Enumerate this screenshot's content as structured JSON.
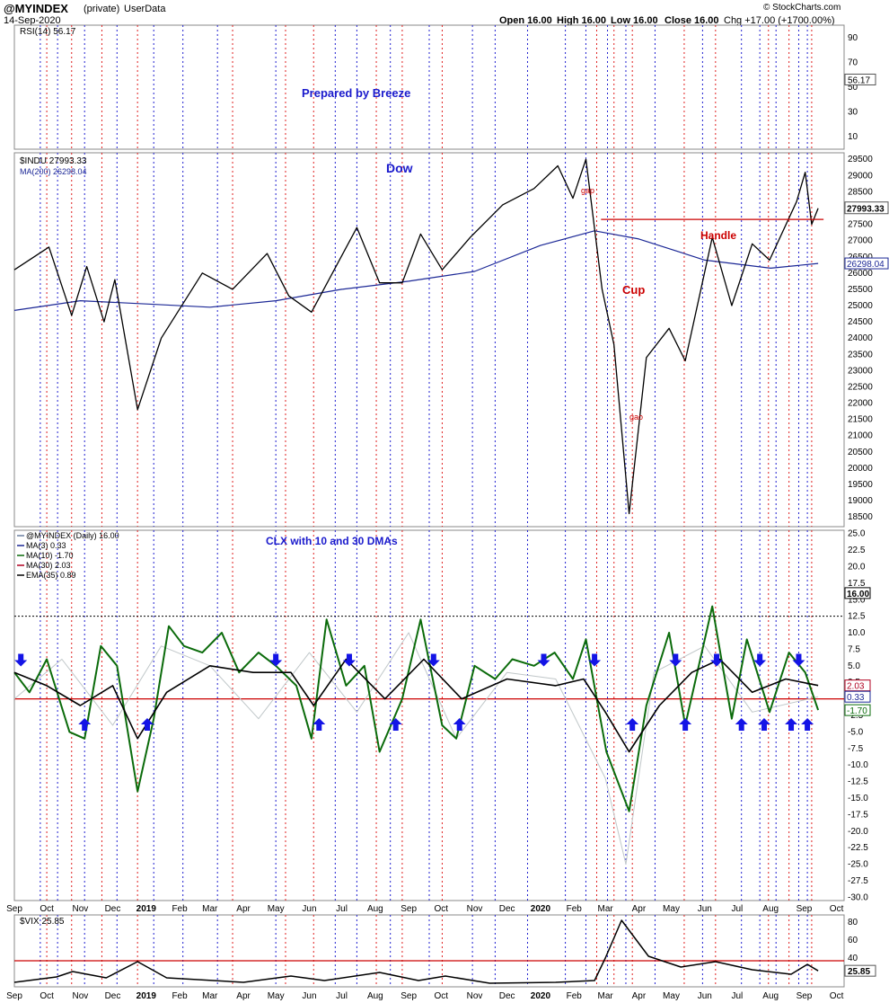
{
  "header": {
    "symbol": "@MYINDEX",
    "tag": "(private)",
    "source": "UserData",
    "date": "14-Sep-2020",
    "open": "Open 16.00",
    "high": "High 16.00",
    "low": "Low 16.00",
    "close": "Close 16.00",
    "chg": "Chg +17.00 (+1700.00%)",
    "copyright": "© StockCharts.com"
  },
  "chart_data": [
    {
      "type": "line",
      "panel": "rsi",
      "legend": "RSI(14) 56.17",
      "last_value": "56.17",
      "ticks": [
        "90",
        "70",
        "50",
        "30",
        "10"
      ],
      "ylim": [
        0,
        100
      ],
      "annotations": [
        "Prepared by Breeze"
      ]
    },
    {
      "type": "line",
      "panel": "price",
      "legend": [
        "$INDU 27993.33",
        "MA(200) 26298.04"
      ],
      "last_values": [
        "27993.33",
        "26298.04"
      ],
      "ticks": [
        "29500",
        "29000",
        "28500",
        "28000",
        "27500",
        "27000",
        "26500",
        "26000",
        "25500",
        "25000",
        "24500",
        "24000",
        "23500",
        "23000",
        "22500",
        "22000",
        "21500",
        "21000",
        "20500",
        "20000",
        "19500",
        "19000",
        "18500"
      ],
      "ylim": [
        18200,
        29700
      ],
      "annotations": [
        "Dow",
        "gap",
        "gao",
        "Handle",
        "Cup"
      ],
      "series": [
        {
          "name": "$INDU",
          "x": [
            "2018-09-01",
            "2018-10-03",
            "2018-10-24",
            "2018-11-07",
            "2018-11-23",
            "2018-12-03",
            "2018-12-24",
            "2019-01-15",
            "2019-02-22",
            "2019-03-22",
            "2019-04-23",
            "2019-05-13",
            "2019-06-03",
            "2019-07-15",
            "2019-08-05",
            "2019-08-26",
            "2019-09-12",
            "2019-10-02",
            "2019-10-28",
            "2019-11-27",
            "2019-12-26",
            "2020-01-17",
            "2020-01-31",
            "2020-02-12",
            "2020-02-27",
            "2020-03-09",
            "2020-03-23",
            "2020-04-08",
            "2020-04-29",
            "2020-05-14",
            "2020-06-08",
            "2020-06-26",
            "2020-07-15",
            "2020-07-31",
            "2020-08-25",
            "2020-09-02",
            "2020-09-08",
            "2020-09-14"
          ],
          "values": [
            26100,
            26800,
            24700,
            26200,
            24500,
            25800,
            21800,
            24000,
            26000,
            25500,
            26600,
            25300,
            24800,
            27400,
            25700,
            25700,
            27200,
            26100,
            27100,
            28100,
            28600,
            29300,
            28300,
            29500,
            25500,
            23800,
            18600,
            23400,
            24300,
            23300,
            27100,
            25000,
            26900,
            26400,
            28200,
            29100,
            27500,
            27993
          ]
        },
        {
          "name": "MA(200)",
          "x": [
            "2018-09-01",
            "2018-11-01",
            "2019-01-01",
            "2019-03-01",
            "2019-05-01",
            "2019-07-01",
            "2019-09-01",
            "2019-11-01",
            "2020-01-01",
            "2020-02-20",
            "2020-04-01",
            "2020-06-01",
            "2020-08-01",
            "2020-09-14"
          ],
          "values": [
            24850,
            25150,
            25050,
            24950,
            25150,
            25500,
            25750,
            26050,
            26850,
            27300,
            27050,
            26400,
            26150,
            26298
          ]
        }
      ],
      "horizontal_line": 27650
    },
    {
      "type": "line",
      "panel": "oscillator",
      "legend": [
        "@MYINDEX (Daily) 16.00",
        "MA(3) 0.33",
        "MA(10) -1.70",
        "MA(30) 2.03",
        "EMA(35) 0.89"
      ],
      "last_values": [
        "16.00",
        "2.03",
        "0.33",
        "-1.70"
      ],
      "title": "CLX with 10 and 30 DMAs",
      "ticks": [
        "25.0",
        "22.5",
        "20.0",
        "17.5",
        "15.0",
        "12.5",
        "10.0",
        "7.5",
        "5.0",
        "2.5",
        "0.0",
        "-2.5",
        "-5.0",
        "-7.5",
        "-10.0",
        "-12.5",
        "-15.0",
        "-17.5",
        "-20.0",
        "-22.5",
        "-25.0",
        "-27.5",
        "-30.0"
      ],
      "ylim": [
        -30.5,
        25.5
      ],
      "reference_lines": [
        12.5,
        0
      ],
      "series": [
        {
          "name": "MA(10)",
          "x": [
            "2018-09-01",
            "2018-09-15",
            "2018-10-01",
            "2018-10-22",
            "2018-11-05",
            "2018-11-20",
            "2018-12-05",
            "2018-12-24",
            "2019-01-08",
            "2019-01-22",
            "2019-02-05",
            "2019-02-22",
            "2019-03-12",
            "2019-03-28",
            "2019-04-15",
            "2019-05-01",
            "2019-05-20",
            "2019-06-03",
            "2019-06-17",
            "2019-07-05",
            "2019-07-22",
            "2019-08-05",
            "2019-08-26",
            "2019-09-12",
            "2019-10-02",
            "2019-10-15",
            "2019-11-01",
            "2019-11-20",
            "2019-12-06",
            "2019-12-26",
            "2020-01-14",
            "2020-01-31",
            "2020-02-12",
            "2020-03-02",
            "2020-03-23",
            "2020-04-08",
            "2020-04-29",
            "2020-05-14",
            "2020-06-08",
            "2020-06-26",
            "2020-07-10",
            "2020-07-31",
            "2020-08-18",
            "2020-09-02",
            "2020-09-14"
          ],
          "values": [
            4,
            1,
            6,
            -5,
            -6,
            8,
            5,
            -14,
            -3,
            11,
            8,
            7,
            10,
            4,
            7,
            5,
            2,
            -6,
            12,
            2,
            5,
            -8,
            0,
            12,
            -4,
            -6,
            5,
            3,
            6,
            5,
            7,
            3,
            9,
            -8,
            -17,
            -1,
            10,
            -4,
            14,
            -3,
            9,
            -2,
            7,
            4,
            -1.7
          ]
        },
        {
          "name": "MA(30)",
          "x": [
            "2018-09-01",
            "2018-10-01",
            "2018-11-01",
            "2018-12-01",
            "2018-12-24",
            "2019-01-20",
            "2019-03-01",
            "2019-04-10",
            "2019-05-15",
            "2019-06-05",
            "2019-07-05",
            "2019-08-10",
            "2019-09-15",
            "2019-10-20",
            "2019-12-01",
            "2020-01-15",
            "2020-02-10",
            "2020-03-01",
            "2020-03-23",
            "2020-04-20",
            "2020-05-20",
            "2020-06-15",
            "2020-07-15",
            "2020-08-15",
            "2020-09-14"
          ],
          "values": [
            4,
            2,
            -1,
            2,
            -6,
            1,
            5,
            4,
            4,
            -1,
            6,
            0,
            6,
            0,
            3,
            2,
            3,
            -2,
            -8,
            -1,
            4,
            6,
            1,
            3,
            2.03
          ]
        },
        {
          "name": "MA(3)",
          "x": [
            "2018-09-01",
            "2018-10-15",
            "2018-12-01",
            "2019-01-15",
            "2019-03-01",
            "2019-04-15",
            "2019-06-01",
            "2019-07-15",
            "2019-09-01",
            "2019-10-15",
            "2019-12-01",
            "2020-01-15",
            "2020-03-01",
            "2020-03-20",
            "2020-04-15",
            "2020-06-01",
            "2020-07-15",
            "2020-09-14"
          ],
          "values": [
            0,
            6,
            -4,
            8,
            5,
            -3,
            7,
            -2,
            10,
            -6,
            4,
            3,
            -12,
            -25,
            4,
            8,
            -2,
            0.33
          ]
        }
      ],
      "up_arrows": [
        "2018-11-05",
        "2019-01-02",
        "2019-06-10",
        "2019-08-20",
        "2019-10-18",
        "2020-03-26",
        "2020-05-14",
        "2020-07-05",
        "2020-07-26",
        "2020-08-20",
        "2020-09-04"
      ],
      "down_arrows": [
        "2018-09-07",
        "2019-05-01",
        "2019-07-08",
        "2019-09-24",
        "2020-01-04",
        "2020-02-20",
        "2020-05-05",
        "2020-06-12",
        "2020-07-22",
        "2020-08-27"
      ]
    },
    {
      "type": "line",
      "panel": "vix",
      "legend": "$VIX 25.85",
      "last_value": "25.85",
      "ticks": [
        "80",
        "60",
        "40"
      ],
      "ylim": [
        8,
        88
      ],
      "reference_line": 37,
      "series": [
        {
          "name": "$VIX",
          "x": [
            "2018-09-01",
            "2018-10-10",
            "2018-10-25",
            "2018-11-25",
            "2018-12-24",
            "2019-01-20",
            "2019-04-01",
            "2019-05-15",
            "2019-06-15",
            "2019-08-05",
            "2019-09-10",
            "2019-10-05",
            "2019-11-15",
            "2020-01-15",
            "2020-02-20",
            "2020-03-01",
            "2020-03-16",
            "2020-04-10",
            "2020-05-10",
            "2020-06-11",
            "2020-07-15",
            "2020-08-20",
            "2020-09-04",
            "2020-09-14"
          ],
          "values": [
            13,
            19,
            25,
            18,
            36,
            18,
            13,
            20,
            15,
            24,
            15,
            20,
            12,
            13,
            15,
            40,
            82,
            42,
            30,
            36,
            27,
            22,
            33,
            25.85
          ]
        }
      ]
    }
  ],
  "x_axis": {
    "labels": [
      "Sep",
      "Oct",
      "Nov",
      "Dec",
      "2019",
      "Feb",
      "Mar",
      "Apr",
      "May",
      "Jun",
      "Jul",
      "Aug",
      "Sep",
      "Oct",
      "Nov",
      "Dec",
      "2020",
      "Feb",
      "Mar",
      "Apr",
      "May",
      "Jun",
      "Jul",
      "Aug",
      "Sep",
      "Oct"
    ],
    "dates": [
      "2018-09-01",
      "2018-10-01",
      "2018-11-01",
      "2018-12-01",
      "2019-01-01",
      "2019-02-01",
      "2019-03-01",
      "2019-04-01",
      "2019-05-01",
      "2019-06-01",
      "2019-07-01",
      "2019-08-01",
      "2019-09-01",
      "2019-10-01",
      "2019-11-01",
      "2019-12-01",
      "2020-01-01",
      "2020-02-01",
      "2020-03-01",
      "2020-04-01",
      "2020-05-01",
      "2020-06-01",
      "2020-07-01",
      "2020-08-01",
      "2020-09-01",
      "2020-10-01"
    ]
  },
  "markers": {
    "red": [
      "2018-10-01",
      "2018-10-24",
      "2018-11-21",
      "2018-12-24",
      "2019-03-22",
      "2019-05-10",
      "2019-06-05",
      "2019-08-02",
      "2019-08-26",
      "2019-10-02",
      "2020-02-22",
      "2020-03-09",
      "2020-03-26",
      "2020-05-13",
      "2020-06-11",
      "2020-07-30",
      "2020-08-18",
      "2020-09-08"
    ],
    "blue": [
      "2018-09-25",
      "2018-10-11",
      "2018-11-05",
      "2018-12-05",
      "2019-01-08",
      "2019-02-04",
      "2019-03-08",
      "2019-05-01",
      "2019-06-25",
      "2019-07-15",
      "2019-08-15",
      "2019-09-20",
      "2019-10-30",
      "2019-11-20",
      "2019-12-20",
      "2020-01-24",
      "2020-02-12",
      "2020-03-03",
      "2020-03-20",
      "2020-04-16",
      "2020-05-30",
      "2020-07-05",
      "2020-07-22",
      "2020-08-06",
      "2020-08-27",
      "2020-09-04"
    ]
  },
  "colors": {
    "price": "#000000",
    "ma200": "#1c2896",
    "ma10": "#0b6b0b",
    "ma30": "#b00020",
    "ema35": "#000000",
    "ma3": "#c0c7c9",
    "vix": "#000000",
    "ref_red": "#cc0000",
    "arrow": "#1414e6",
    "annot_blue": "#1a1acc",
    "annot_red": "#cc0000"
  }
}
